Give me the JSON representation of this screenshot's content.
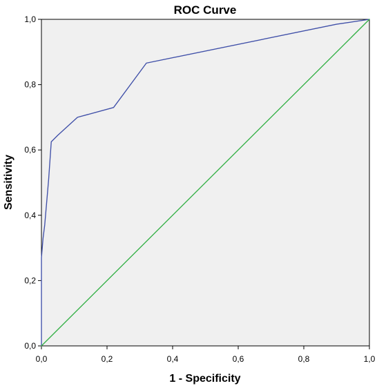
{
  "chart_data": {
    "type": "line",
    "title": "ROC Curve",
    "xlabel": "1 - Specificity",
    "ylabel": "Sensitivity",
    "xlim": [
      0,
      1
    ],
    "ylim": [
      0,
      1
    ],
    "x_ticks": [
      "0,0",
      "0,2",
      "0,4",
      "0,6",
      "0,8",
      "1,0"
    ],
    "y_ticks": [
      "0,0",
      "0,2",
      "0,4",
      "0,6",
      "0,8",
      "1,0"
    ],
    "grid": false,
    "background_color": "#f0f0f0",
    "series": [
      {
        "role": "roc-curve",
        "color": "#3f4fa8",
        "points": [
          [
            0.0,
            0.0
          ],
          [
            0.0,
            0.27
          ],
          [
            0.005,
            0.33
          ],
          [
            0.01,
            0.37
          ],
          [
            0.022,
            0.51
          ],
          [
            0.03,
            0.625
          ],
          [
            0.05,
            0.645
          ],
          [
            0.11,
            0.7
          ],
          [
            0.22,
            0.73
          ],
          [
            0.32,
            0.866
          ],
          [
            0.9,
            0.985
          ],
          [
            1.0,
            1.0
          ]
        ]
      },
      {
        "role": "reference-line",
        "color": "#33b045",
        "points": [
          [
            0.0,
            0.0
          ],
          [
            1.0,
            1.0
          ]
        ]
      }
    ]
  }
}
